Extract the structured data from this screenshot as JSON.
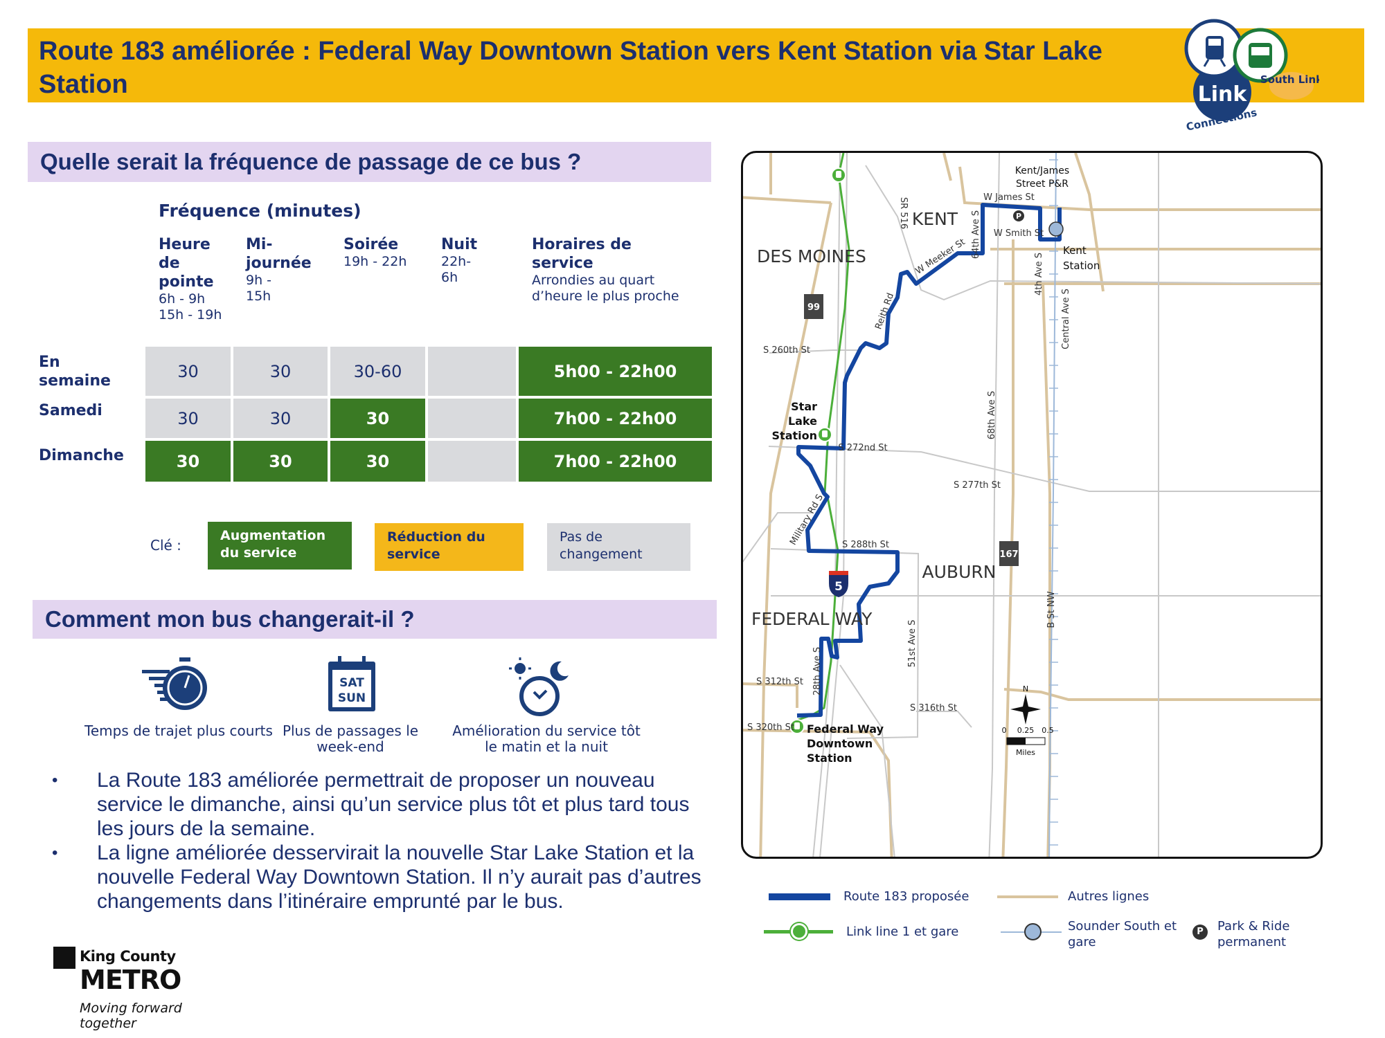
{
  "header": {
    "title": "Route 183 améliorée : Federal Way Downtown Station vers Kent Station via Star Lake Station",
    "logo": {
      "link": "Link",
      "connections": "Connections",
      "south_link": "South Link"
    }
  },
  "frequency_section": {
    "heading": "Quelle serait la fréquence de passage de ce bus ?",
    "table_title": "Fréquence (minutes)",
    "columns": [
      {
        "title": "Heure de pointe",
        "sub": "6h - 9h 15h - 19h"
      },
      {
        "title": "Mi-journée",
        "sub": "9h - 15h"
      },
      {
        "title": "Soirée",
        "sub": "19h - 22h"
      },
      {
        "title": "Nuit",
        "sub": "22h-6h"
      },
      {
        "title": "Horaires de service",
        "sub": "Arrondies au quart d’heure le plus proche"
      }
    ],
    "rows": [
      {
        "label": "En semaine",
        "cells": [
          {
            "v": "30",
            "s": "none"
          },
          {
            "v": "30",
            "s": "none"
          },
          {
            "v": "30-60",
            "s": "none"
          },
          {
            "v": "",
            "s": "none"
          },
          {
            "v": "5h00 - 22h00",
            "s": "increase"
          }
        ]
      },
      {
        "label": "Samedi",
        "cells": [
          {
            "v": "30",
            "s": "none"
          },
          {
            "v": "30",
            "s": "none"
          },
          {
            "v": "30",
            "s": "increase"
          },
          {
            "v": "",
            "s": "none"
          },
          {
            "v": "7h00 - 22h00",
            "s": "increase"
          }
        ]
      },
      {
        "label": "Dimanche",
        "cells": [
          {
            "v": "30",
            "s": "increase"
          },
          {
            "v": "30",
            "s": "increase"
          },
          {
            "v": "30",
            "s": "increase"
          },
          {
            "v": "",
            "s": "none"
          },
          {
            "v": "7h00 - 22h00",
            "s": "increase"
          }
        ]
      }
    ],
    "key": {
      "label": "Clé :",
      "increase": "Augmentation du service",
      "decrease": "Réduction du service",
      "none": "Pas de changement"
    },
    "colors": {
      "increase": "#3a7a24",
      "decrease": "#f4b71a",
      "none": "#d9dadd"
    }
  },
  "changes_section": {
    "heading": "Comment mon bus changerait-il ?",
    "icons": [
      {
        "icon": "stopwatch-icon",
        "label": "Temps de trajet plus courts"
      },
      {
        "icon": "calendar-icon",
        "label": "Plus de passages le week-end",
        "cal_text1": "SAT",
        "cal_text2": "SUN"
      },
      {
        "icon": "clock-sun-moon-icon",
        "label": "Amélioration du service tôt le matin et la nuit"
      }
    ],
    "bullets": [
      "La Route 183 améliorée permettrait de proposer un nouveau service le dimanche, ainsi qu’un service plus tôt et plus tard tous les jours de la semaine.",
      "La ligne améliorée desservirait la nouvelle Star Lake Station et la nouvelle Federal Way Downtown Station. Il n’y aurait pas d’autres changements dans l’itinéraire emprunté par le bus."
    ]
  },
  "footer_logo": {
    "line1": "King County",
    "line2": "METRO",
    "tagline": "Moving forward together"
  },
  "map": {
    "cities": {
      "des_moines": "DES MOINES",
      "kent": "KENT",
      "auburn": "AUBURN",
      "federal_way": "FEDERAL WAY"
    },
    "stations": {
      "star_lake": [
        "Star",
        "Lake",
        "Station"
      ],
      "fwd": [
        "Federal Way",
        "Downtown",
        "Station"
      ],
      "kent": [
        "Kent",
        "Station"
      ],
      "kent_james": [
        "Kent/James",
        "Street P&R"
      ]
    },
    "streets": {
      "w_james": "W James St",
      "w_smith": "W Smith St",
      "w_meeker": "W Meeker St",
      "reith": "Reith Rd",
      "sr516": "SR 516",
      "ave64": "64th Ave S",
      "ave4": "4th Ave S",
      "central": "Central Ave S",
      "ave68": "68th Ave S",
      "s260": "S 260th St",
      "s272": "S 272nd St",
      "s277": "S 277th St",
      "military": "Military Rd S",
      "s288": "S 288th St",
      "ave51": "51st Ave S",
      "bst": "B St NW",
      "ave28": "28th Ave S",
      "s312": "S 312th St",
      "s316": "S 316th St",
      "s320": "S 320th St"
    },
    "shields": {
      "sr99": "99",
      "sr167": "167",
      "i5": "5"
    },
    "park_ride": "P",
    "compass_n": "N",
    "scale": {
      "t0": "0",
      "t1": "0.25",
      "t2": "0.5",
      "unit": "Miles"
    },
    "colors": {
      "route": "#1446a0",
      "link": "#4caf3a",
      "other": "#d9c49e",
      "sounder": "#9db8d9"
    }
  },
  "legend": {
    "route": "Route 183 proposée",
    "other": "Autres lignes",
    "link": "Link line 1 et gare",
    "sounder": "Sounder South et gare",
    "park": "Park & Ride permanent",
    "p": "P"
  }
}
